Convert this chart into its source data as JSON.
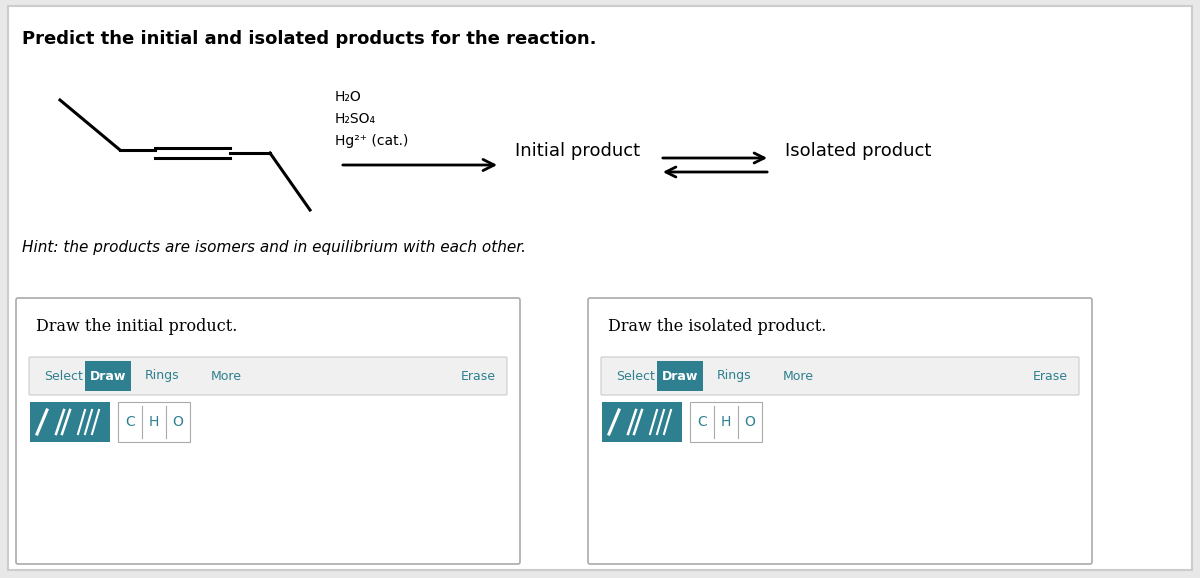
{
  "title": "Predict the initial and isolated products for the reaction.",
  "hint": "Hint: the products are isomers and in equilibrium with each other.",
  "reagents": [
    "H₂O",
    "H₂SO₄",
    "Hg²⁺ (cat.)"
  ],
  "label_initial": "Initial product",
  "label_isolated": "Isolated product",
  "draw_initial": "Draw the initial product.",
  "draw_isolated": "Draw the isolated product.",
  "toolbar_items": [
    "Select",
    "Draw",
    "Rings",
    "More",
    "Erase"
  ],
  "atom_items": [
    "C",
    "H",
    "O"
  ],
  "bg_color": "#e8e8e8",
  "panel_bg": "#ffffff",
  "teal_color": "#2e7f8f",
  "title_fontsize": 13,
  "hint_fontsize": 11,
  "reagent_fontsize": 10,
  "label_fontsize": 13
}
